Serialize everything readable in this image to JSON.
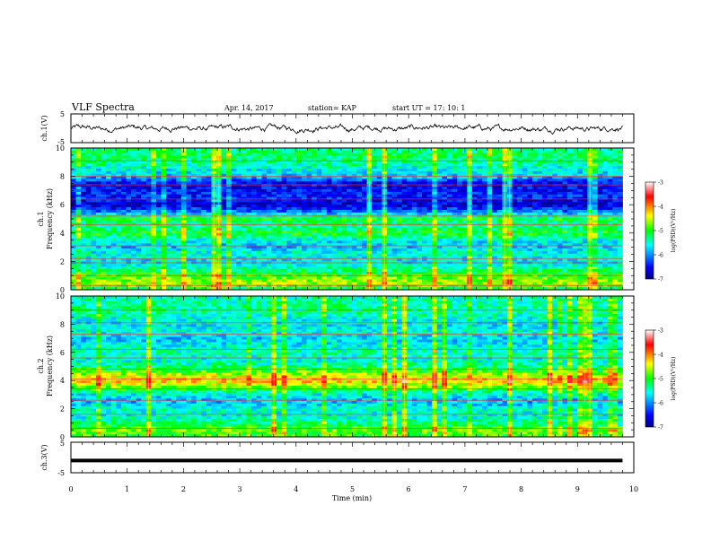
{
  "header": {
    "title": "VLF Spectra",
    "date": "Apr. 14, 2017",
    "station": "station= KAP",
    "start": "start  UT =   17: 10: 1"
  },
  "chart_data": [
    {
      "type": "line",
      "panel": "ch1-waveform",
      "ylabel": "ch.1(V)",
      "ylim": [
        -5,
        5
      ],
      "yticks": [
        "5",
        "-5"
      ],
      "xlim": [
        0,
        10
      ],
      "x_extent_min": [
        0,
        9.8
      ],
      "trace_mean": 0,
      "trace_amplitude": 1.3,
      "trace_color": "#000000"
    },
    {
      "type": "heatmap",
      "panel": "ch1-spectrogram",
      "ylabel": "ch.1\nFrequency (kHz)",
      "ylim": [
        0,
        10
      ],
      "yticks": [
        "0",
        "2",
        "4",
        "6",
        "8",
        "10"
      ],
      "xlim": [
        0,
        10
      ],
      "x_extent_min": [
        0,
        9.8
      ],
      "colorbar": {
        "label": "log(PSD)(V²/Hz)",
        "range": [
          -7,
          -3
        ],
        "ticks": [
          "-3",
          "-4",
          "-5",
          "-6",
          "-7"
        ]
      },
      "frequency_profile_kHz_logpsd": [
        [
          0.0,
          -5.2
        ],
        [
          0.5,
          -4.6
        ],
        [
          1.0,
          -4.9
        ],
        [
          1.5,
          -5.4
        ],
        [
          2.0,
          -5.7
        ],
        [
          2.5,
          -5.5
        ],
        [
          3.0,
          -5.8
        ],
        [
          3.5,
          -5.6
        ],
        [
          4.0,
          -5.0
        ],
        [
          4.5,
          -5.4
        ],
        [
          5.0,
          -5.1
        ],
        [
          5.5,
          -6.1
        ],
        [
          6.0,
          -6.7
        ],
        [
          6.5,
          -6.4
        ],
        [
          7.0,
          -6.5
        ],
        [
          7.5,
          -6.6
        ],
        [
          8.0,
          -5.8
        ],
        [
          8.5,
          -5.6
        ],
        [
          9.0,
          -5.3
        ],
        [
          9.5,
          -5.2
        ],
        [
          10.0,
          -5.3
        ]
      ],
      "narrowband_lines_kHz": [
        0.3,
        1.0,
        1.9,
        2.2,
        3.1,
        4.6,
        5.2,
        6.4,
        7.4,
        8.0,
        9.1
      ]
    },
    {
      "type": "heatmap",
      "panel": "ch2-spectrogram",
      "ylabel": "ch.2\nFrequency (kHz)",
      "ylim": [
        0,
        10
      ],
      "yticks": [
        "0",
        "2",
        "4",
        "6",
        "8",
        "10"
      ],
      "xlim": [
        0,
        10
      ],
      "x_extent_min": [
        0,
        9.8
      ],
      "colorbar": {
        "label": "log(PSD)(V²/Hz)",
        "range": [
          -7,
          -3
        ],
        "ticks": [
          "-3",
          "-4",
          "-5",
          "-6",
          "-7"
        ]
      },
      "frequency_profile_kHz_logpsd": [
        [
          0.0,
          -5.0
        ],
        [
          0.5,
          -4.8
        ],
        [
          1.0,
          -5.3
        ],
        [
          1.5,
          -5.6
        ],
        [
          2.0,
          -5.5
        ],
        [
          2.5,
          -5.9
        ],
        [
          3.0,
          -5.6
        ],
        [
          3.5,
          -4.8
        ],
        [
          4.0,
          -4.2
        ],
        [
          4.5,
          -4.7
        ],
        [
          5.0,
          -5.3
        ],
        [
          5.5,
          -5.6
        ],
        [
          6.0,
          -5.4
        ],
        [
          6.5,
          -5.6
        ],
        [
          7.0,
          -5.8
        ],
        [
          7.5,
          -5.5
        ],
        [
          8.0,
          -5.7
        ],
        [
          8.5,
          -5.5
        ],
        [
          9.0,
          -5.3
        ],
        [
          9.5,
          -5.4
        ],
        [
          10.0,
          -5.4
        ]
      ],
      "narrowband_lines_kHz": [
        0.6,
        1.6,
        2.6,
        3.4,
        4.1,
        4.8,
        5.6,
        6.2,
        7.3,
        8.1,
        9.0
      ]
    },
    {
      "type": "line",
      "panel": "ch3-waveform",
      "ylabel": "ch.3(V)",
      "ylim": [
        -5,
        5
      ],
      "yticks": [
        "5",
        "-5"
      ],
      "xlim": [
        0,
        10
      ],
      "x_extent_min": [
        0,
        9.8
      ],
      "trace_value": -1,
      "trace_color": "#000000"
    }
  ],
  "x_axis": {
    "label": "Time (min)",
    "ticks": [
      "0",
      "1",
      "2",
      "3",
      "4",
      "5",
      "6",
      "7",
      "8",
      "9",
      "10"
    ]
  }
}
